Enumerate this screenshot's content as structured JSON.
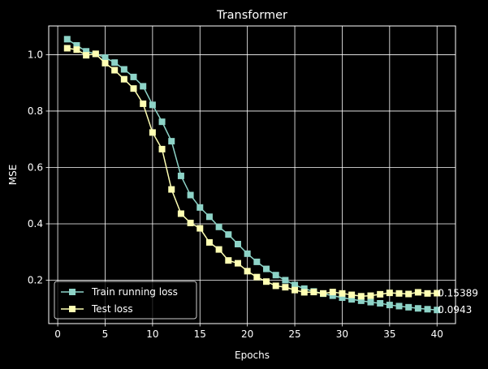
{
  "chart_data": {
    "type": "line",
    "title": "Transformer",
    "xlabel": "Epochs",
    "ylabel": "MSE",
    "xlim": [
      -0.95,
      41.95
    ],
    "ylim": [
      0.046,
      1.102
    ],
    "xticks": [
      0,
      5,
      10,
      15,
      20,
      25,
      30,
      35,
      40
    ],
    "yticks": [
      0.2,
      0.4,
      0.6,
      0.8,
      1.0
    ],
    "xtick_labels": [
      "0",
      "5",
      "10",
      "15",
      "20",
      "25",
      "30",
      "35",
      "40"
    ],
    "ytick_labels": [
      "0.2",
      "0.4",
      "0.6",
      "0.8",
      "1.0"
    ],
    "grid": true,
    "legend_position": "lower-left",
    "background": "#000000",
    "foreground": "#ffffff",
    "x": [
      1,
      2,
      3,
      4,
      5,
      6,
      7,
      8,
      9,
      10,
      11,
      12,
      13,
      14,
      15,
      16,
      17,
      18,
      19,
      20,
      21,
      22,
      23,
      24,
      25,
      26,
      27,
      28,
      29,
      30,
      31,
      32,
      33,
      34,
      35,
      36,
      37,
      38,
      39,
      40
    ],
    "series": [
      {
        "name": "Train running loss",
        "color": "#8dd3c7",
        "marker": "square",
        "values": [
          1.055,
          1.033,
          1.012,
          1.003,
          0.99,
          0.972,
          0.948,
          0.921,
          0.888,
          0.822,
          0.762,
          0.693,
          0.57,
          0.502,
          0.458,
          0.425,
          0.389,
          0.362,
          0.328,
          0.294,
          0.265,
          0.24,
          0.218,
          0.2,
          0.183,
          0.17,
          0.16,
          0.152,
          0.145,
          0.138,
          0.132,
          0.127,
          0.122,
          0.118,
          0.112,
          0.108,
          0.104,
          0.1,
          0.097,
          0.0943
        ]
      },
      {
        "name": "Test loss",
        "color": "#feffb3",
        "marker": "square",
        "values": [
          1.023,
          1.018,
          0.998,
          1.003,
          0.97,
          0.945,
          0.913,
          0.88,
          0.826,
          0.724,
          0.665,
          0.522,
          0.436,
          0.403,
          0.384,
          0.334,
          0.309,
          0.27,
          0.26,
          0.232,
          0.211,
          0.195,
          0.18,
          0.175,
          0.165,
          0.157,
          0.158,
          0.153,
          0.158,
          0.153,
          0.148,
          0.143,
          0.145,
          0.15,
          0.155,
          0.153,
          0.151,
          0.157,
          0.153,
          0.15389
        ]
      }
    ],
    "end_labels": [
      "0.15389",
      "0.0943"
    ]
  }
}
